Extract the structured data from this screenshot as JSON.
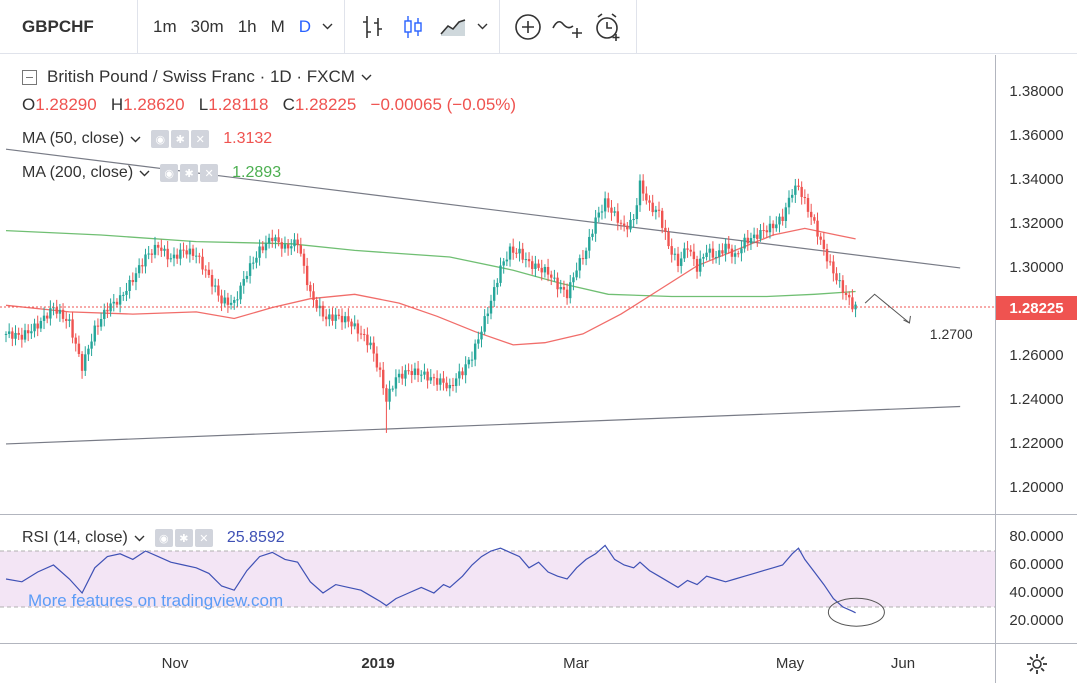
{
  "toolbar": {
    "symbol": "GBPCHF",
    "intervals": [
      "1m",
      "30m",
      "1h",
      "M",
      "D"
    ],
    "active_interval": "D",
    "icons": [
      "bar-style-icon",
      "candle-style-icon",
      "area-style-icon",
      "compare-add-icon",
      "indicators-icon",
      "alert-clock-icon"
    ]
  },
  "legend": {
    "title": "British Pound / Swiss Franc · 1D · FXCM",
    "open_key": "O",
    "open": "1.28290",
    "high_key": "H",
    "high": "1.28620",
    "low_key": "L",
    "low": "1.28118",
    "close_key": "C",
    "close": "1.28225",
    "change": "−0.00065 (−0.05%)"
  },
  "indicators": {
    "ma50": {
      "label": "MA (50, close)",
      "value": "1.3132",
      "color": "#ef5350"
    },
    "ma200": {
      "label": "MA (200, close)",
      "value": "1.2893",
      "color": "#4caf50"
    },
    "rsi": {
      "label": "RSI (14, close)",
      "value": "25.8592",
      "color": "#3f51b5"
    }
  },
  "watermark": "More features on tradingview.com",
  "last_price": "1.28225",
  "annotation_target": "1.2700",
  "price_ticks": [
    "1.38000",
    "1.36000",
    "1.34000",
    "1.32000",
    "1.30000",
    "1.28000",
    "1.26000",
    "1.24000",
    "1.22000",
    "1.20000"
  ],
  "rsi_ticks": [
    "80.0000",
    "60.0000",
    "40.0000",
    "20.0000"
  ],
  "time_ticks": [
    {
      "label": "Nov",
      "bold": false
    },
    {
      "label": "2019",
      "bold": true
    },
    {
      "label": "Mar",
      "bold": false
    },
    {
      "label": "May",
      "bold": false
    },
    {
      "label": "Jun",
      "bold": false
    }
  ],
  "colors": {
    "up": "#26a69a",
    "down": "#ef5350",
    "ma50": "#ef5350",
    "ma200": "#4caf50",
    "rsi": "#3f51b5",
    "rsi_band": "#f3e5f5",
    "trendline": "#787b86",
    "accent": "#2962ff"
  },
  "chart_data": {
    "type": "candlestick",
    "title": "British Pound / Swiss Franc · 1D · FXCM",
    "ylim": [
      1.195,
      1.39
    ],
    "rsi_ylim": [
      20,
      80
    ],
    "rsi_band": [
      30,
      70
    ],
    "grid": false,
    "close_path": [
      [
        0,
        1.27
      ],
      [
        5,
        1.269
      ],
      [
        10,
        1.274
      ],
      [
        15,
        1.282
      ],
      [
        20,
        1.275
      ],
      [
        24,
        1.255
      ],
      [
        28,
        1.272
      ],
      [
        32,
        1.282
      ],
      [
        36,
        1.286
      ],
      [
        40,
        1.295
      ],
      [
        44,
        1.305
      ],
      [
        48,
        1.31
      ],
      [
        52,
        1.304
      ],
      [
        56,
        1.308
      ],
      [
        60,
        1.306
      ],
      [
        64,
        1.296
      ],
      [
        68,
        1.285
      ],
      [
        72,
        1.284
      ],
      [
        76,
        1.298
      ],
      [
        80,
        1.308
      ],
      [
        84,
        1.314
      ],
      [
        88,
        1.309
      ],
      [
        92,
        1.312
      ],
      [
        96,
        1.288
      ],
      [
        98,
        1.283
      ],
      [
        101,
        1.277
      ],
      [
        104,
        1.278
      ],
      [
        108,
        1.276
      ],
      [
        112,
        1.27
      ],
      [
        115,
        1.265
      ],
      [
        118,
        1.252
      ],
      [
        120,
        1.24
      ],
      [
        123,
        1.25
      ],
      [
        127,
        1.253
      ],
      [
        131,
        1.252
      ],
      [
        135,
        1.249
      ],
      [
        138,
        1.248
      ],
      [
        140,
        1.245
      ],
      [
        142,
        1.25
      ],
      [
        144,
        1.253
      ],
      [
        147,
        1.26
      ],
      [
        150,
        1.272
      ],
      [
        153,
        1.285
      ],
      [
        156,
        1.3
      ],
      [
        159,
        1.308
      ],
      [
        162,
        1.307
      ],
      [
        165,
        1.302
      ],
      [
        168,
        1.3
      ],
      [
        171,
        1.298
      ],
      [
        174,
        1.292
      ],
      [
        177,
        1.288
      ],
      [
        180,
        1.3
      ],
      [
        183,
        1.308
      ],
      [
        186,
        1.322
      ],
      [
        189,
        1.33
      ],
      [
        192,
        1.324
      ],
      [
        195,
        1.318
      ],
      [
        198,
        1.322
      ],
      [
        200,
        1.338
      ],
      [
        203,
        1.328
      ],
      [
        206,
        1.325
      ],
      [
        209,
        1.31
      ],
      [
        212,
        1.302
      ],
      [
        215,
        1.31
      ],
      [
        218,
        1.3
      ],
      [
        221,
        1.308
      ],
      [
        224,
        1.305
      ],
      [
        227,
        1.31
      ],
      [
        230,
        1.305
      ],
      [
        233,
        1.312
      ],
      [
        236,
        1.314
      ],
      [
        239,
        1.317
      ],
      [
        242,
        1.319
      ],
      [
        245,
        1.323
      ],
      [
        248,
        1.335
      ],
      [
        250,
        1.337
      ],
      [
        252,
        1.33
      ],
      [
        255,
        1.32
      ],
      [
        258,
        1.308
      ],
      [
        261,
        1.298
      ],
      [
        264,
        1.29
      ],
      [
        267,
        1.283
      ],
      [
        268,
        1.28225
      ]
    ],
    "rsi_values": [
      [
        0,
        50
      ],
      [
        5,
        48
      ],
      [
        10,
        55
      ],
      [
        15,
        60
      ],
      [
        20,
        50
      ],
      [
        24,
        40
      ],
      [
        28,
        58
      ],
      [
        32,
        66
      ],
      [
        36,
        68
      ],
      [
        40,
        64
      ],
      [
        44,
        70
      ],
      [
        48,
        66
      ],
      [
        52,
        62
      ],
      [
        56,
        60
      ],
      [
        60,
        58
      ],
      [
        64,
        54
      ],
      [
        68,
        45
      ],
      [
        72,
        42
      ],
      [
        76,
        56
      ],
      [
        80,
        66
      ],
      [
        84,
        69
      ],
      [
        88,
        64
      ],
      [
        92,
        62
      ],
      [
        96,
        48
      ],
      [
        100,
        40
      ],
      [
        104,
        46
      ],
      [
        108,
        44
      ],
      [
        112,
        42
      ],
      [
        115,
        38
      ],
      [
        118,
        34
      ],
      [
        120,
        31
      ],
      [
        123,
        36
      ],
      [
        127,
        40
      ],
      [
        131,
        44
      ],
      [
        135,
        40
      ],
      [
        138,
        46
      ],
      [
        140,
        44
      ],
      [
        144,
        52
      ],
      [
        147,
        60
      ],
      [
        150,
        66
      ],
      [
        153,
        70
      ],
      [
        156,
        72
      ],
      [
        159,
        69
      ],
      [
        162,
        66
      ],
      [
        165,
        58
      ],
      [
        168,
        62
      ],
      [
        171,
        55
      ],
      [
        174,
        52
      ],
      [
        177,
        50
      ],
      [
        180,
        58
      ],
      [
        183,
        64
      ],
      [
        186,
        68
      ],
      [
        189,
        74
      ],
      [
        192,
        64
      ],
      [
        195,
        60
      ],
      [
        198,
        58
      ],
      [
        200,
        62
      ],
      [
        203,
        56
      ],
      [
        206,
        52
      ],
      [
        209,
        48
      ],
      [
        212,
        44
      ],
      [
        215,
        49
      ],
      [
        218,
        46
      ],
      [
        221,
        52
      ],
      [
        224,
        50
      ],
      [
        227,
        48
      ],
      [
        230,
        50
      ],
      [
        233,
        52
      ],
      [
        236,
        54
      ],
      [
        239,
        56
      ],
      [
        242,
        58
      ],
      [
        245,
        60
      ],
      [
        248,
        68
      ],
      [
        250,
        72
      ],
      [
        252,
        64
      ],
      [
        255,
        55
      ],
      [
        258,
        46
      ],
      [
        261,
        36
      ],
      [
        264,
        30
      ],
      [
        267,
        27
      ],
      [
        268,
        25.8592
      ]
    ],
    "ma50_path": [
      [
        0,
        1.283
      ],
      [
        20,
        1.28
      ],
      [
        40,
        1.279
      ],
      [
        60,
        1.28
      ],
      [
        72,
        1.277
      ],
      [
        84,
        1.282
      ],
      [
        96,
        1.286
      ],
      [
        110,
        1.288
      ],
      [
        124,
        1.284
      ],
      [
        136,
        1.278
      ],
      [
        148,
        1.271
      ],
      [
        160,
        1.265
      ],
      [
        170,
        1.266
      ],
      [
        182,
        1.27
      ],
      [
        194,
        1.279
      ],
      [
        206,
        1.29
      ],
      [
        218,
        1.301
      ],
      [
        230,
        1.308
      ],
      [
        242,
        1.315
      ],
      [
        252,
        1.318
      ],
      [
        262,
        1.315
      ],
      [
        268,
        1.3132
      ]
    ],
    "ma200_path": [
      [
        0,
        1.317
      ],
      [
        30,
        1.315
      ],
      [
        60,
        1.312
      ],
      [
        90,
        1.311
      ],
      [
        110,
        1.308
      ],
      [
        140,
        1.305
      ],
      [
        160,
        1.299
      ],
      [
        175,
        1.293
      ],
      [
        190,
        1.288
      ],
      [
        210,
        1.287
      ],
      [
        240,
        1.287
      ],
      [
        255,
        1.288
      ],
      [
        268,
        1.2893
      ]
    ],
    "trendlines": [
      {
        "name": "resistance",
        "from": [
          0,
          1.354
        ],
        "to": [
          301,
          1.3
        ]
      },
      {
        "name": "support",
        "from": [
          0,
          1.22
        ],
        "to": [
          301,
          1.237
        ]
      }
    ],
    "projection": [
      [
        271,
        1.284
      ],
      [
        274,
        1.288
      ],
      [
        285,
        1.275
      ]
    ],
    "annotation": {
      "label": "1.2700",
      "at": [
        293,
        1.27
      ]
    },
    "circle_marker": {
      "at": [
        267,
        27
      ]
    }
  }
}
